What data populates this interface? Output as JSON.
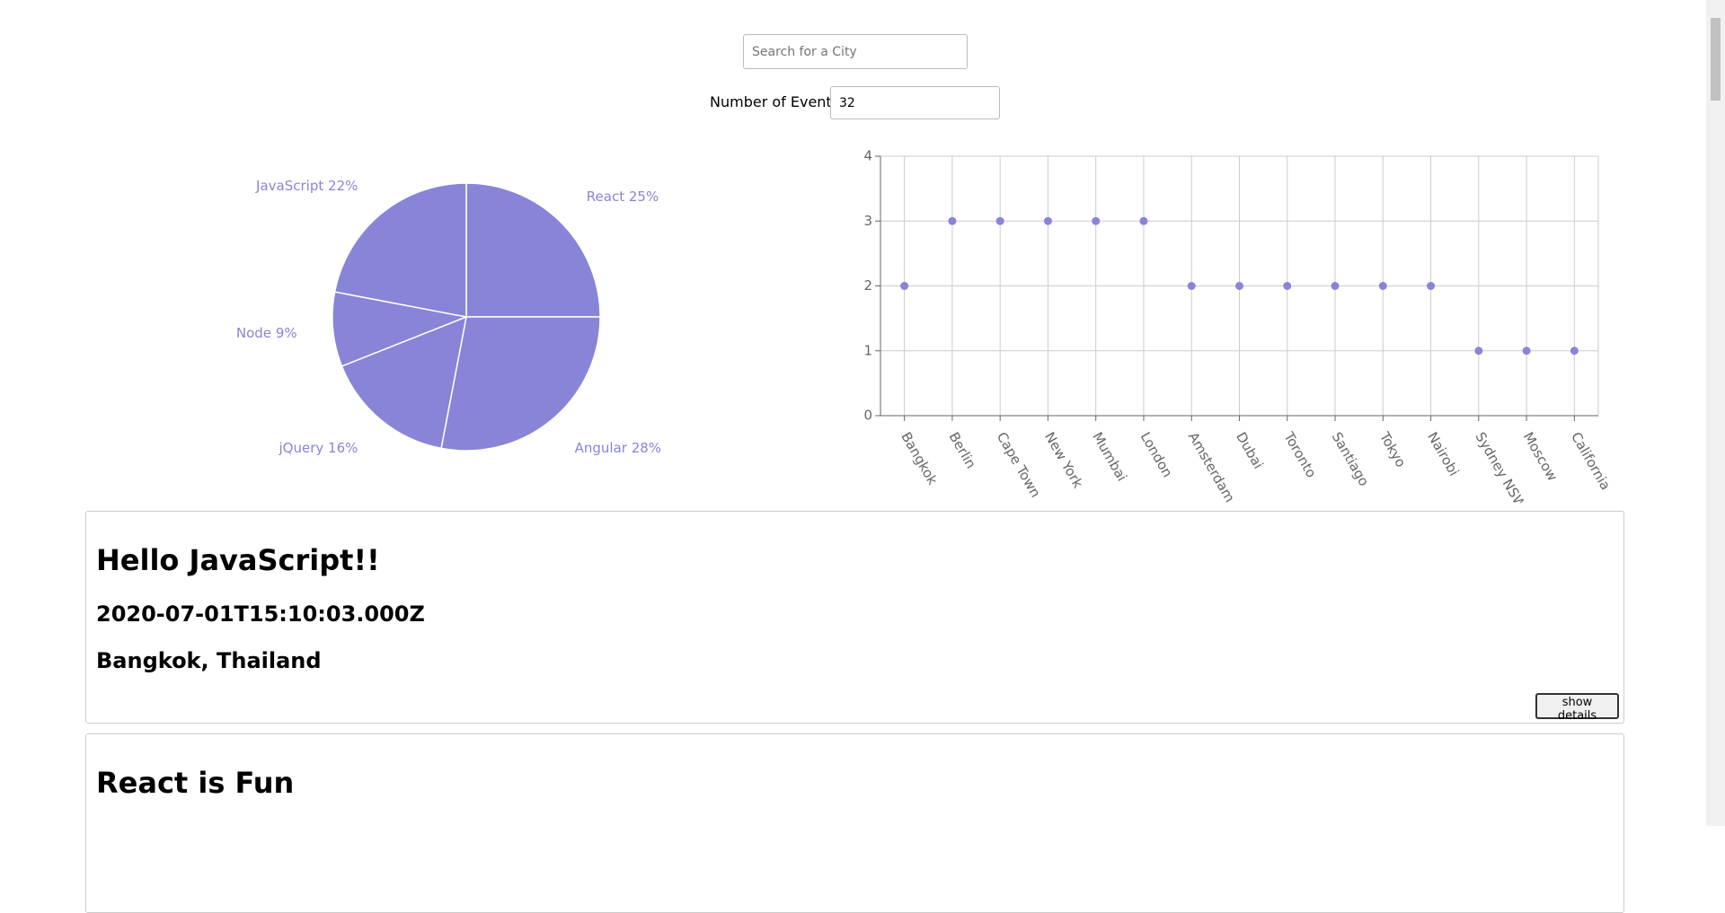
{
  "search": {
    "placeholder": "Search for a City"
  },
  "number_of_events": {
    "label": "Number of Events:",
    "value": 32
  },
  "chart_data": [
    {
      "type": "pie",
      "categories": [
        "React",
        "Angular",
        "jQuery",
        "Node",
        "JavaScript"
      ],
      "values": [
        25,
        28,
        16,
        9,
        22
      ],
      "value_labels": [
        "25%",
        "28%",
        "16%",
        "9%",
        "22%"
      ],
      "color": "#8884d8"
    },
    {
      "type": "scatter",
      "categories": [
        "Bangkok",
        "Berlin",
        "Cape Town",
        "New York",
        "Mumbai",
        "London",
        "Amsterdam",
        "Dubai",
        "Toronto",
        "Santiago",
        "Tokyo",
        "Nairobi",
        "Sydney NSW",
        "Moscow",
        "California"
      ],
      "values": [
        2,
        3,
        3,
        3,
        3,
        3,
        2,
        2,
        2,
        2,
        2,
        2,
        1,
        1,
        1
      ],
      "ylim": [
        0,
        4
      ],
      "yticks": [
        0,
        1,
        2,
        3,
        4
      ],
      "grid": true,
      "color": "#8884d8"
    }
  ],
  "events": [
    {
      "title": "Hello JavaScript!!",
      "date": "2020-07-01T15:10:03.000Z",
      "location": "Bangkok, Thailand",
      "button": "show details"
    },
    {
      "title": "React is Fun"
    }
  ]
}
